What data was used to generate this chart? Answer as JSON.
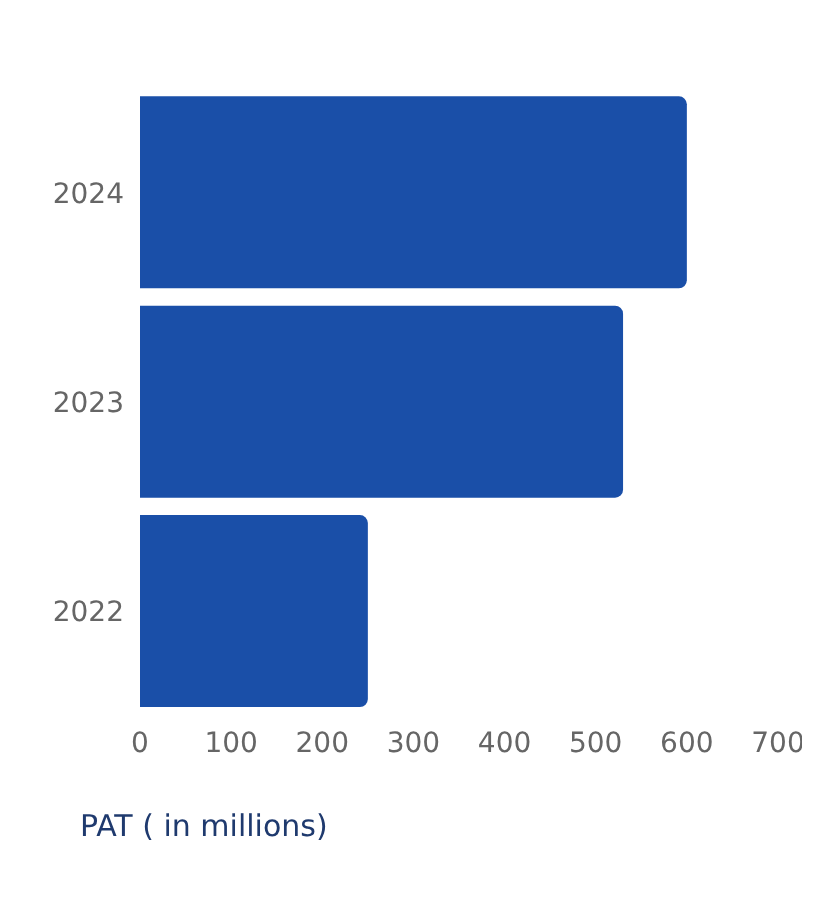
{
  "chart_data": {
    "type": "bar",
    "orientation": "horizontal",
    "categories": [
      "2024",
      "2023",
      "2022"
    ],
    "values": [
      600,
      530,
      250
    ],
    "color": "#1a4fa8",
    "xlim": [
      0,
      700
    ],
    "xticks": [
      0,
      100,
      200,
      300,
      400,
      500,
      600,
      700
    ],
    "xlabel": "PAT ( in millions)",
    "grid": false,
    "legend": false
  }
}
